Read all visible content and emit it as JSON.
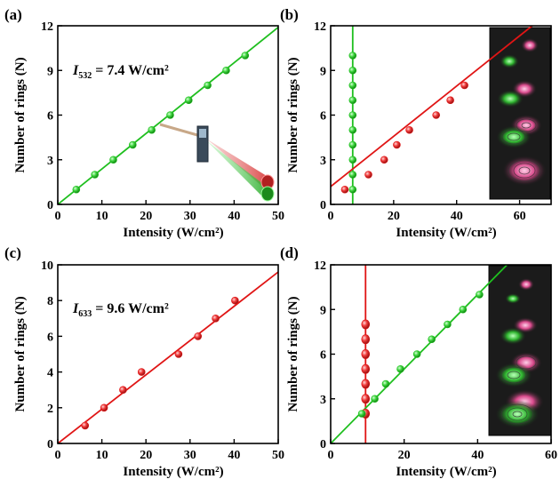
{
  "chart_data": [
    {
      "id": "a",
      "type": "scatter",
      "panel_label": "(a)",
      "xlabel": "Intensity (W/cm²)",
      "ylabel": "Number of rings (N)",
      "xlim": [
        0,
        50
      ],
      "ylim": [
        0,
        12
      ],
      "xticks": [
        "0",
        "10",
        "20",
        "30",
        "40",
        "50"
      ],
      "yticks": [
        "0",
        "3",
        "6",
        "9",
        "12"
      ],
      "annotation": {
        "symbol": "I",
        "subscript": "532",
        "text": " = 7.4 W/cm²"
      },
      "inset": "laser-beam-schematic",
      "series": [
        {
          "color": "#1fbf1f",
          "marker_color": "#4cd64c",
          "points": [
            [
              4.2,
              1
            ],
            [
              8.4,
              2
            ],
            [
              12.6,
              3
            ],
            [
              17.0,
              4
            ],
            [
              21.3,
              5
            ],
            [
              25.5,
              6
            ],
            [
              29.7,
              7
            ],
            [
              34.0,
              8
            ],
            [
              38.2,
              9
            ],
            [
              42.5,
              10
            ]
          ],
          "fit": [
            [
              0,
              0
            ],
            [
              50,
              11.9
            ]
          ]
        }
      ]
    },
    {
      "id": "b",
      "type": "scatter",
      "panel_label": "(b)",
      "xlabel": "Intensity (W/cm²)",
      "ylabel": "Number of rings (N)",
      "xlim": [
        0,
        70
      ],
      "ylim": [
        0,
        12
      ],
      "xticks": [
        "0",
        "20",
        "40",
        "60"
      ],
      "yticks": [
        "0",
        "3",
        "6",
        "9",
        "12"
      ],
      "inset": "ring-pattern-photos",
      "series": [
        {
          "color": "#1fbf1f",
          "marker_color": "#4cd64c",
          "points": [
            [
              7,
              1
            ],
            [
              7,
              2
            ],
            [
              7,
              3
            ],
            [
              7,
              4
            ],
            [
              7,
              5
            ],
            [
              7,
              6
            ],
            [
              7,
              7
            ],
            [
              7,
              8
            ],
            [
              7,
              9
            ],
            [
              7,
              10
            ]
          ],
          "fit": [
            [
              7,
              0
            ],
            [
              7,
              12
            ]
          ]
        },
        {
          "color": "#e01515",
          "marker_color": "#ef3030",
          "points": [
            [
              4.5,
              1
            ],
            [
              12,
              2
            ],
            [
              17,
              3
            ],
            [
              21,
              4
            ],
            [
              25,
              5
            ],
            [
              33.5,
              6
            ],
            [
              38,
              7
            ],
            [
              42.5,
              8
            ]
          ],
          "fit": [
            [
              0,
              1.2
            ],
            [
              64,
              12
            ]
          ]
        }
      ]
    },
    {
      "id": "c",
      "type": "scatter",
      "panel_label": "(c)",
      "xlabel": "Intensity (W/cm²)",
      "ylabel": "Number of rings (N)",
      "xlim": [
        0,
        50
      ],
      "ylim": [
        0,
        10
      ],
      "xticks": [
        "0",
        "10",
        "20",
        "30",
        "40",
        "50"
      ],
      "yticks": [
        "0",
        "2",
        "4",
        "6",
        "8",
        "10"
      ],
      "annotation": {
        "symbol": "I",
        "subscript": "633",
        "text": " = 9.6 W/cm²"
      },
      "series": [
        {
          "color": "#e01515",
          "marker_color": "#ef3030",
          "points": [
            [
              6.2,
              1
            ],
            [
              10.5,
              2
            ],
            [
              14.8,
              3
            ],
            [
              19.0,
              4
            ],
            [
              27.4,
              5
            ],
            [
              31.8,
              6
            ],
            [
              35.8,
              7
            ],
            [
              40.2,
              8
            ]
          ],
          "fit": [
            [
              0,
              0
            ],
            [
              50,
              9.6
            ]
          ]
        }
      ]
    },
    {
      "id": "d",
      "type": "scatter",
      "panel_label": "(d)",
      "xlabel": "Intensity (W/cm²)",
      "ylabel": "Number of rings (N)",
      "xlim": [
        0,
        60
      ],
      "ylim": [
        0,
        12
      ],
      "xticks": [
        "0",
        "20",
        "40",
        "60"
      ],
      "yticks": [
        "0",
        "3",
        "6",
        "9",
        "12"
      ],
      "inset": "ring-pattern-photos",
      "series": [
        {
          "color": "#e01515",
          "marker_color": "#ef3030",
          "points": [
            [
              9.5,
              2
            ],
            [
              9.5,
              3
            ],
            [
              9.5,
              4
            ],
            [
              9.5,
              5
            ],
            [
              9.5,
              6
            ],
            [
              9.5,
              7
            ],
            [
              9.5,
              8
            ]
          ],
          "fit": [
            [
              9.5,
              0
            ],
            [
              9.5,
              12
            ]
          ]
        },
        {
          "color": "#1fbf1f",
          "marker_color": "#4cd64c",
          "points": [
            [
              8.5,
              2
            ],
            [
              12,
              3
            ],
            [
              15,
              4
            ],
            [
              19,
              5
            ],
            [
              23.5,
              6
            ],
            [
              27.5,
              7
            ],
            [
              31.8,
              8
            ],
            [
              36,
              9
            ],
            [
              40.5,
              10
            ]
          ],
          "fit": [
            [
              0,
              0
            ],
            [
              48,
              12
            ]
          ]
        }
      ]
    }
  ]
}
